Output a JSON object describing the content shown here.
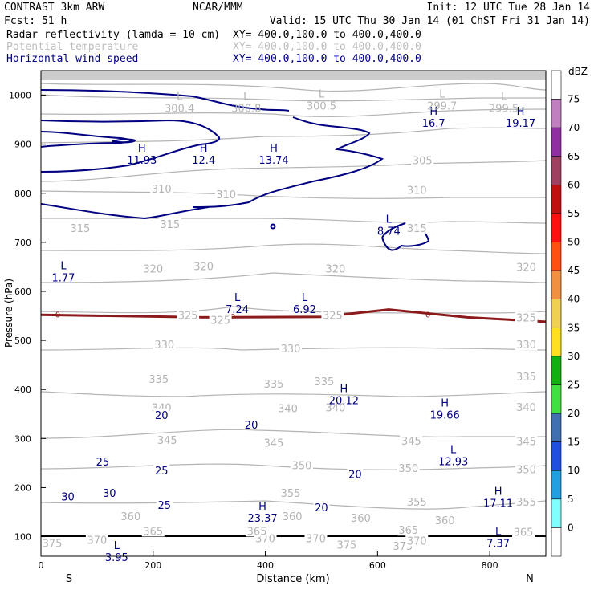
{
  "header": {
    "title_left": "CONTRAST  3km ARW",
    "title_center": "NCAR/MMM",
    "init": "Init: 12 UTC Tue 28 Jan 14",
    "fcst": "Fcst:   51 h",
    "valid": "Valid: 15 UTC Thu 30 Jan 14 (01 ChST Fri 31 Jan 14)",
    "fields": [
      {
        "name": "Radar reflectivity (lamda = 10 cm)",
        "xy": "XY= 400.0,100.0 to 400.0,400.0",
        "color": "#000000"
      },
      {
        "name": "Potential temperature",
        "xy": "XY= 400.0,100.0 to 400.0,400.0",
        "color": "#bdbdbd"
      },
      {
        "name": "Horizontal wind speed",
        "xy": "XY= 400.0,100.0 to 400.0,400.0",
        "color": "#000080"
      }
    ]
  },
  "colors": {
    "theta": "#b4b4b4",
    "wind": "#000080",
    "freezing": "#8b1a1a",
    "ground": "#000000"
  },
  "chart_data": {
    "type": "contour",
    "xlabel": "Distance (km)",
    "ylabel": "Pressure (hPa)",
    "xlim": [
      0,
      900
    ],
    "ylim": [
      1050,
      60
    ],
    "x_ticks": [
      0,
      200,
      400,
      600,
      800
    ],
    "x_tick_labels": [
      "0",
      "200",
      "400",
      "600",
      "800"
    ],
    "y_ticks": [
      100,
      200,
      300,
      400,
      500,
      600,
      700,
      800,
      900,
      1000
    ],
    "y_tick_labels": [
      "100",
      "200",
      "300",
      "400",
      "500",
      "600",
      "700",
      "800",
      "900",
      "1000"
    ],
    "end_labels": {
      "left": "S",
      "right": "N"
    },
    "colorbar": {
      "title": "dBZ",
      "levels": [
        "75",
        "70",
        "65",
        "60",
        "55",
        "50",
        "45",
        "40",
        "35",
        "30",
        "25",
        "20",
        "15",
        "10",
        "5",
        "0"
      ],
      "colors": [
        "#ffffff",
        "#c080c0",
        "#9030a0",
        "#a04060",
        "#c01010",
        "#ff1010",
        "#ff5010",
        "#f09040",
        "#f0d050",
        "#ffe020",
        "#10b010",
        "#40e040",
        "#4070b0",
        "#2050e0",
        "#20a0e0",
        "#80ffff",
        "#ffffff"
      ]
    },
    "theta_contours": [
      {
        "level": 375,
        "labels": [
          {
            "x": 20,
            "p": 85,
            "text": "375"
          },
          {
            "x": 545,
            "p": 82,
            "text": "375"
          },
          {
            "x": 645,
            "p": 80,
            "text": "375"
          }
        ]
      },
      {
        "level": 370,
        "labels": [
          {
            "x": 100,
            "p": 92,
            "text": "370"
          },
          {
            "x": 400,
            "p": 95,
            "text": "370"
          },
          {
            "x": 490,
            "p": 95,
            "text": "370"
          },
          {
            "x": 670,
            "p": 90,
            "text": "370"
          }
        ]
      },
      {
        "level": 365,
        "labels": [
          {
            "x": 200,
            "p": 110,
            "text": "365"
          },
          {
            "x": 385,
            "p": 110,
            "text": "365"
          },
          {
            "x": 655,
            "p": 112,
            "text": "365"
          },
          {
            "x": 860,
            "p": 108,
            "text": "365"
          }
        ]
      },
      {
        "level": 360,
        "labels": [
          {
            "x": 160,
            "p": 140,
            "text": "360"
          },
          {
            "x": 448,
            "p": 140,
            "text": "360"
          },
          {
            "x": 570,
            "p": 137,
            "text": "360"
          },
          {
            "x": 720,
            "p": 132,
            "text": "360"
          }
        ]
      },
      {
        "level": 355,
        "labels": [
          {
            "x": 445,
            "p": 188,
            "text": "355"
          },
          {
            "x": 670,
            "p": 170,
            "text": "355"
          },
          {
            "x": 865,
            "p": 170,
            "text": "355"
          }
        ]
      },
      {
        "level": 350,
        "labels": [
          {
            "x": 465,
            "p": 244,
            "text": "350"
          },
          {
            "x": 655,
            "p": 238,
            "text": "350"
          },
          {
            "x": 865,
            "p": 236,
            "text": "350"
          }
        ]
      },
      {
        "level": 345,
        "labels": [
          {
            "x": 225,
            "p": 296,
            "text": "345"
          },
          {
            "x": 415,
            "p": 290,
            "text": "345"
          },
          {
            "x": 660,
            "p": 294,
            "text": "345"
          },
          {
            "x": 865,
            "p": 293,
            "text": "345"
          }
        ]
      },
      {
        "level": 340,
        "labels": [
          {
            "x": 215,
            "p": 362,
            "text": "340"
          },
          {
            "x": 440,
            "p": 360,
            "text": "340"
          },
          {
            "x": 525,
            "p": 362,
            "text": "340"
          },
          {
            "x": 865,
            "p": 363,
            "text": "340"
          }
        ]
      },
      {
        "level": 335,
        "labels": [
          {
            "x": 210,
            "p": 420,
            "text": "335"
          },
          {
            "x": 415,
            "p": 410,
            "text": "335"
          },
          {
            "x": 505,
            "p": 415,
            "text": "335"
          },
          {
            "x": 865,
            "p": 425,
            "text": "335"
          }
        ]
      },
      {
        "level": 330,
        "labels": [
          {
            "x": 220,
            "p": 490,
            "text": "330"
          },
          {
            "x": 445,
            "p": 482,
            "text": "330"
          },
          {
            "x": 865,
            "p": 490,
            "text": "330"
          }
        ]
      },
      {
        "level": 325,
        "labels": [
          {
            "x": 262,
            "p": 550,
            "text": "325"
          },
          {
            "x": 320,
            "p": 540,
            "text": "325"
          },
          {
            "x": 520,
            "p": 550,
            "text": "325"
          },
          {
            "x": 865,
            "p": 545,
            "text": "325"
          }
        ]
      },
      {
        "level": 320,
        "labels": [
          {
            "x": 200,
            "p": 645,
            "text": "320"
          },
          {
            "x": 290,
            "p": 650,
            "text": "320"
          },
          {
            "x": 525,
            "p": 645,
            "text": "320"
          },
          {
            "x": 865,
            "p": 648,
            "text": "320"
          }
        ]
      },
      {
        "level": 315,
        "labels": [
          {
            "x": 70,
            "p": 728,
            "text": "315"
          },
          {
            "x": 230,
            "p": 736,
            "text": "315"
          },
          {
            "x": 670,
            "p": 728,
            "text": "315"
          }
        ]
      },
      {
        "level": 310,
        "labels": [
          {
            "x": 215,
            "p": 808,
            "text": "310"
          },
          {
            "x": 330,
            "p": 796,
            "text": "310"
          },
          {
            "x": 670,
            "p": 805,
            "text": "310"
          }
        ]
      },
      {
        "level": 305,
        "labels": [
          {
            "x": 680,
            "p": 866,
            "text": "305"
          }
        ]
      }
    ],
    "wind_contours": [
      {
        "level": 30,
        "labels": [
          {
            "x": 48,
            "p": 182,
            "text": "30"
          },
          {
            "x": 122,
            "p": 189,
            "text": "30"
          }
        ]
      },
      {
        "level": 25,
        "labels": [
          {
            "x": 220,
            "p": 165,
            "text": "25"
          },
          {
            "x": 110,
            "p": 253,
            "text": "25"
          },
          {
            "x": 215,
            "p": 235,
            "text": "25"
          }
        ]
      },
      {
        "level": 20,
        "labels": [
          {
            "x": 500,
            "p": 160,
            "text": "20"
          },
          {
            "x": 560,
            "p": 228,
            "text": "20"
          },
          {
            "x": 215,
            "p": 348,
            "text": "20"
          },
          {
            "x": 375,
            "p": 328,
            "text": "20"
          }
        ]
      }
    ],
    "freezing_level": {
      "label": "0",
      "values": [
        {
          "x": 0,
          "p": 552
        },
        {
          "x": 300,
          "p": 547
        },
        {
          "x": 500,
          "p": 548
        },
        {
          "x": 620,
          "p": 563
        },
        {
          "x": 760,
          "p": 547
        },
        {
          "x": 900,
          "p": 538
        }
      ],
      "label_positions": [
        {
          "x": 30,
          "p": 553
        },
        {
          "x": 342,
          "p": 549
        },
        {
          "x": 515,
          "p": 552
        },
        {
          "x": 690,
          "p": 553
        },
        {
          "x": 850,
          "p": 547
        }
      ]
    },
    "extrema": [
      {
        "kind": "L",
        "value": "3.95",
        "x": 135,
        "p": 75,
        "field": "wind"
      },
      {
        "kind": "L",
        "value": "7.37",
        "x": 815,
        "p": 103,
        "field": "wind"
      },
      {
        "kind": "H",
        "value": "23.37",
        "x": 395,
        "p": 155,
        "field": "wind"
      },
      {
        "kind": "H",
        "value": "17.11",
        "x": 815,
        "p": 185,
        "field": "wind"
      },
      {
        "kind": "L",
        "value": "12.93",
        "x": 735,
        "p": 270,
        "field": "wind"
      },
      {
        "kind": "H",
        "value": "19.66",
        "x": 720,
        "p": 365,
        "field": "wind"
      },
      {
        "kind": "H",
        "value": "20.12",
        "x": 540,
        "p": 395,
        "field": "wind"
      },
      {
        "kind": "L",
        "value": "7.24",
        "x": 350,
        "p": 580,
        "field": "wind"
      },
      {
        "kind": "L",
        "value": "6.92",
        "x": 470,
        "p": 580,
        "field": "wind"
      },
      {
        "kind": "L",
        "value": "1.77",
        "x": 40,
        "p": 645,
        "field": "wind"
      },
      {
        "kind": "L",
        "value": "8.74",
        "x": 620,
        "p": 740,
        "field": "wind"
      },
      {
        "kind": "H",
        "value": "11.93",
        "x": 180,
        "p": 885,
        "field": "wind"
      },
      {
        "kind": "H",
        "value": "12.4",
        "x": 290,
        "p": 885,
        "field": "wind"
      },
      {
        "kind": "H",
        "value": "13.74",
        "x": 415,
        "p": 885,
        "field": "wind"
      },
      {
        "kind": "H",
        "value": "16.7",
        "x": 700,
        "p": 960,
        "field": "wind"
      },
      {
        "kind": "H",
        "value": "19.17",
        "x": 855,
        "p": 960,
        "field": "wind"
      },
      {
        "kind": "L",
        "value": "300.4",
        "x": 247,
        "p": 990,
        "field": "theta"
      },
      {
        "kind": "L",
        "value": "300.8",
        "x": 366,
        "p": 990,
        "field": "theta"
      },
      {
        "kind": "L",
        "value": "300.5",
        "x": 500,
        "p": 995,
        "field": "theta"
      },
      {
        "kind": "L",
        "value": "299.7",
        "x": 715,
        "p": 995,
        "field": "theta"
      },
      {
        "kind": "L",
        "value": "299.5",
        "x": 825,
        "p": 990,
        "field": "theta"
      }
    ]
  }
}
